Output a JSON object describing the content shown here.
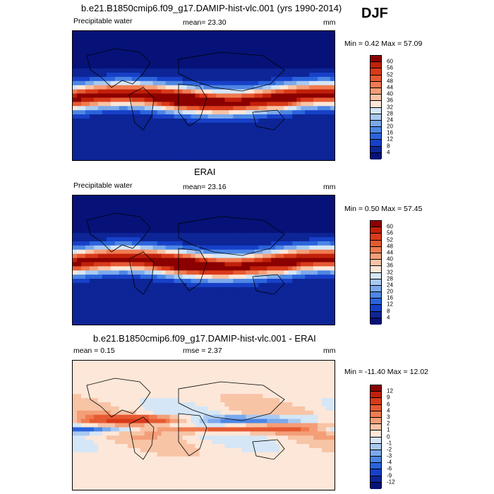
{
  "season": "DJF",
  "panels": [
    {
      "title": "b.e21.B1850cmip6.f09_g17.DAMIP-hist-vlc.001 (yrs 1990-2014)",
      "left": "Precipitable water",
      "center": "mean=  23.30",
      "right": "mm",
      "minmax": "Min =   0.42 Max =  57.09",
      "kind": "abs"
    },
    {
      "title": "ERAI",
      "left": "Precipitable water",
      "center": "mean=  23.16",
      "right": "mm",
      "minmax": "Min =   0.50 Max =  57.45",
      "kind": "abs"
    },
    {
      "title": "b.e21.B1850cmip6.f09_g17.DAMIP-hist-vlc.001 - ERAI",
      "left": "mean =   0.15",
      "center": "rmse =   2.37",
      "right": "mm",
      "minmax": "Min = -11.40 Max =  12.02",
      "kind": "diff"
    }
  ],
  "colorbars": {
    "abs": {
      "labels": [
        "60",
        "56",
        "52",
        "48",
        "44",
        "40",
        "36",
        "32",
        "28",
        "24",
        "20",
        "16",
        "12",
        "8",
        "4"
      ],
      "colors": [
        "#8b0000",
        "#c1200a",
        "#d83a1a",
        "#e65a32",
        "#ef7b50",
        "#f49e78",
        "#f8c4a6",
        "#fde7d9",
        "#d5e6f6",
        "#a9c9f1",
        "#7ba9ec",
        "#4d86e4",
        "#2a64dc",
        "#1740c8",
        "#0d2596",
        "#061278"
      ]
    },
    "diff": {
      "labels": [
        "12",
        "9",
        "6",
        "4",
        "3",
        "2",
        "1",
        "0",
        "-1",
        "-2",
        "-3",
        "-4",
        "-6",
        "-9",
        "-12"
      ],
      "colors": [
        "#8b0000",
        "#c1200a",
        "#d83a1a",
        "#e65a32",
        "#ef7b50",
        "#f49e78",
        "#f8c4a6",
        "#fde7d9",
        "#d5e6f6",
        "#a9c9f1",
        "#7ba9ec",
        "#4d86e4",
        "#2a64dc",
        "#1740c8",
        "#0d2596",
        "#061278"
      ]
    }
  },
  "chart_data": [
    {
      "type": "heatmap",
      "title": "b.e21.B1850cmip6.f09_g17.DAMIP-hist-vlc.001 (yrs 1990-2014)",
      "variable": "Precipitable water",
      "units": "mm",
      "mean": 23.3,
      "min": 0.42,
      "max": 57.09,
      "contour_levels": [
        4,
        8,
        12,
        16,
        20,
        24,
        28,
        32,
        36,
        40,
        44,
        48,
        52,
        56,
        60
      ]
    },
    {
      "type": "heatmap",
      "title": "ERAI",
      "variable": "Precipitable water",
      "units": "mm",
      "mean": 23.16,
      "min": 0.5,
      "max": 57.45,
      "contour_levels": [
        4,
        8,
        12,
        16,
        20,
        24,
        28,
        32,
        36,
        40,
        44,
        48,
        52,
        56,
        60
      ]
    },
    {
      "type": "heatmap",
      "title": "b.e21.B1850cmip6.f09_g17.DAMIP-hist-vlc.001 - ERAI",
      "units": "mm",
      "mean": 0.15,
      "rmse": 2.37,
      "min": -11.4,
      "max": 12.02,
      "contour_levels": [
        -12,
        -9,
        -6,
        -4,
        -3,
        -2,
        -1,
        0,
        1,
        2,
        3,
        4,
        6,
        9,
        12
      ]
    }
  ]
}
